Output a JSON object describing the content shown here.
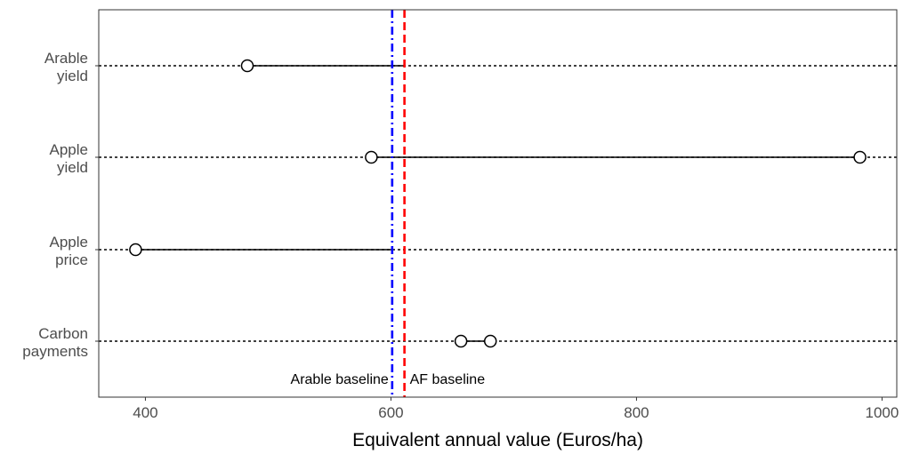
{
  "chart_data": {
    "type": "dumbbell",
    "title": "",
    "xlabel": "Equivalent annual value (Euros/ha)",
    "ylabel": "",
    "xlim": [
      362,
      1012
    ],
    "xticks": [
      400,
      600,
      800,
      1000
    ],
    "grid": "off",
    "categories": [
      {
        "id": "arable-yield",
        "lines": [
          "Arable",
          "yield"
        ],
        "low": 483,
        "high": 611
      },
      {
        "id": "apple-yield",
        "lines": [
          "Apple",
          "yield"
        ],
        "low": 584,
        "high": 982
      },
      {
        "id": "apple-price",
        "lines": [
          "Apple",
          "price"
        ],
        "low": 392,
        "high": 601
      },
      {
        "id": "carbon-payments",
        "lines": [
          "Carbon",
          "payments"
        ],
        "low": 657,
        "high": 681
      }
    ],
    "baselines": [
      {
        "id": "arable-baseline",
        "label": "Arable baseline",
        "value": 601,
        "color": "#0000ff",
        "style": "dashdot",
        "label_side": "left"
      },
      {
        "id": "af-baseline",
        "label": "AF baseline",
        "value": 611,
        "color": "#ff0000",
        "style": "dashed",
        "label_side": "right"
      }
    ]
  }
}
